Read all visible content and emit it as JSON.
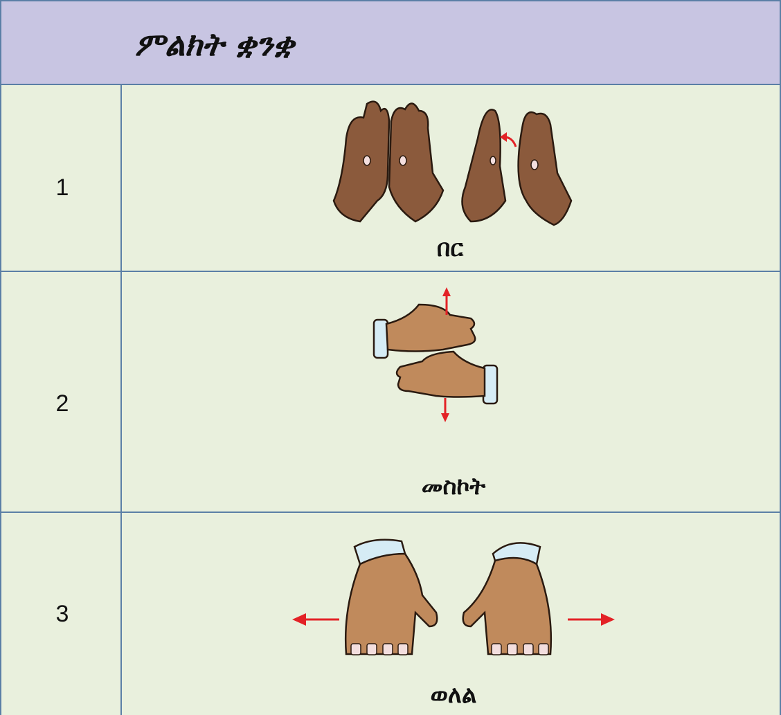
{
  "header": {
    "title": "ምልክት ቋንቋ"
  },
  "table": {
    "rows": [
      {
        "number": "1",
        "label": "በር"
      },
      {
        "number": "2",
        "label": "መስኮት"
      },
      {
        "number": "3",
        "label": "ወለል"
      }
    ]
  }
}
